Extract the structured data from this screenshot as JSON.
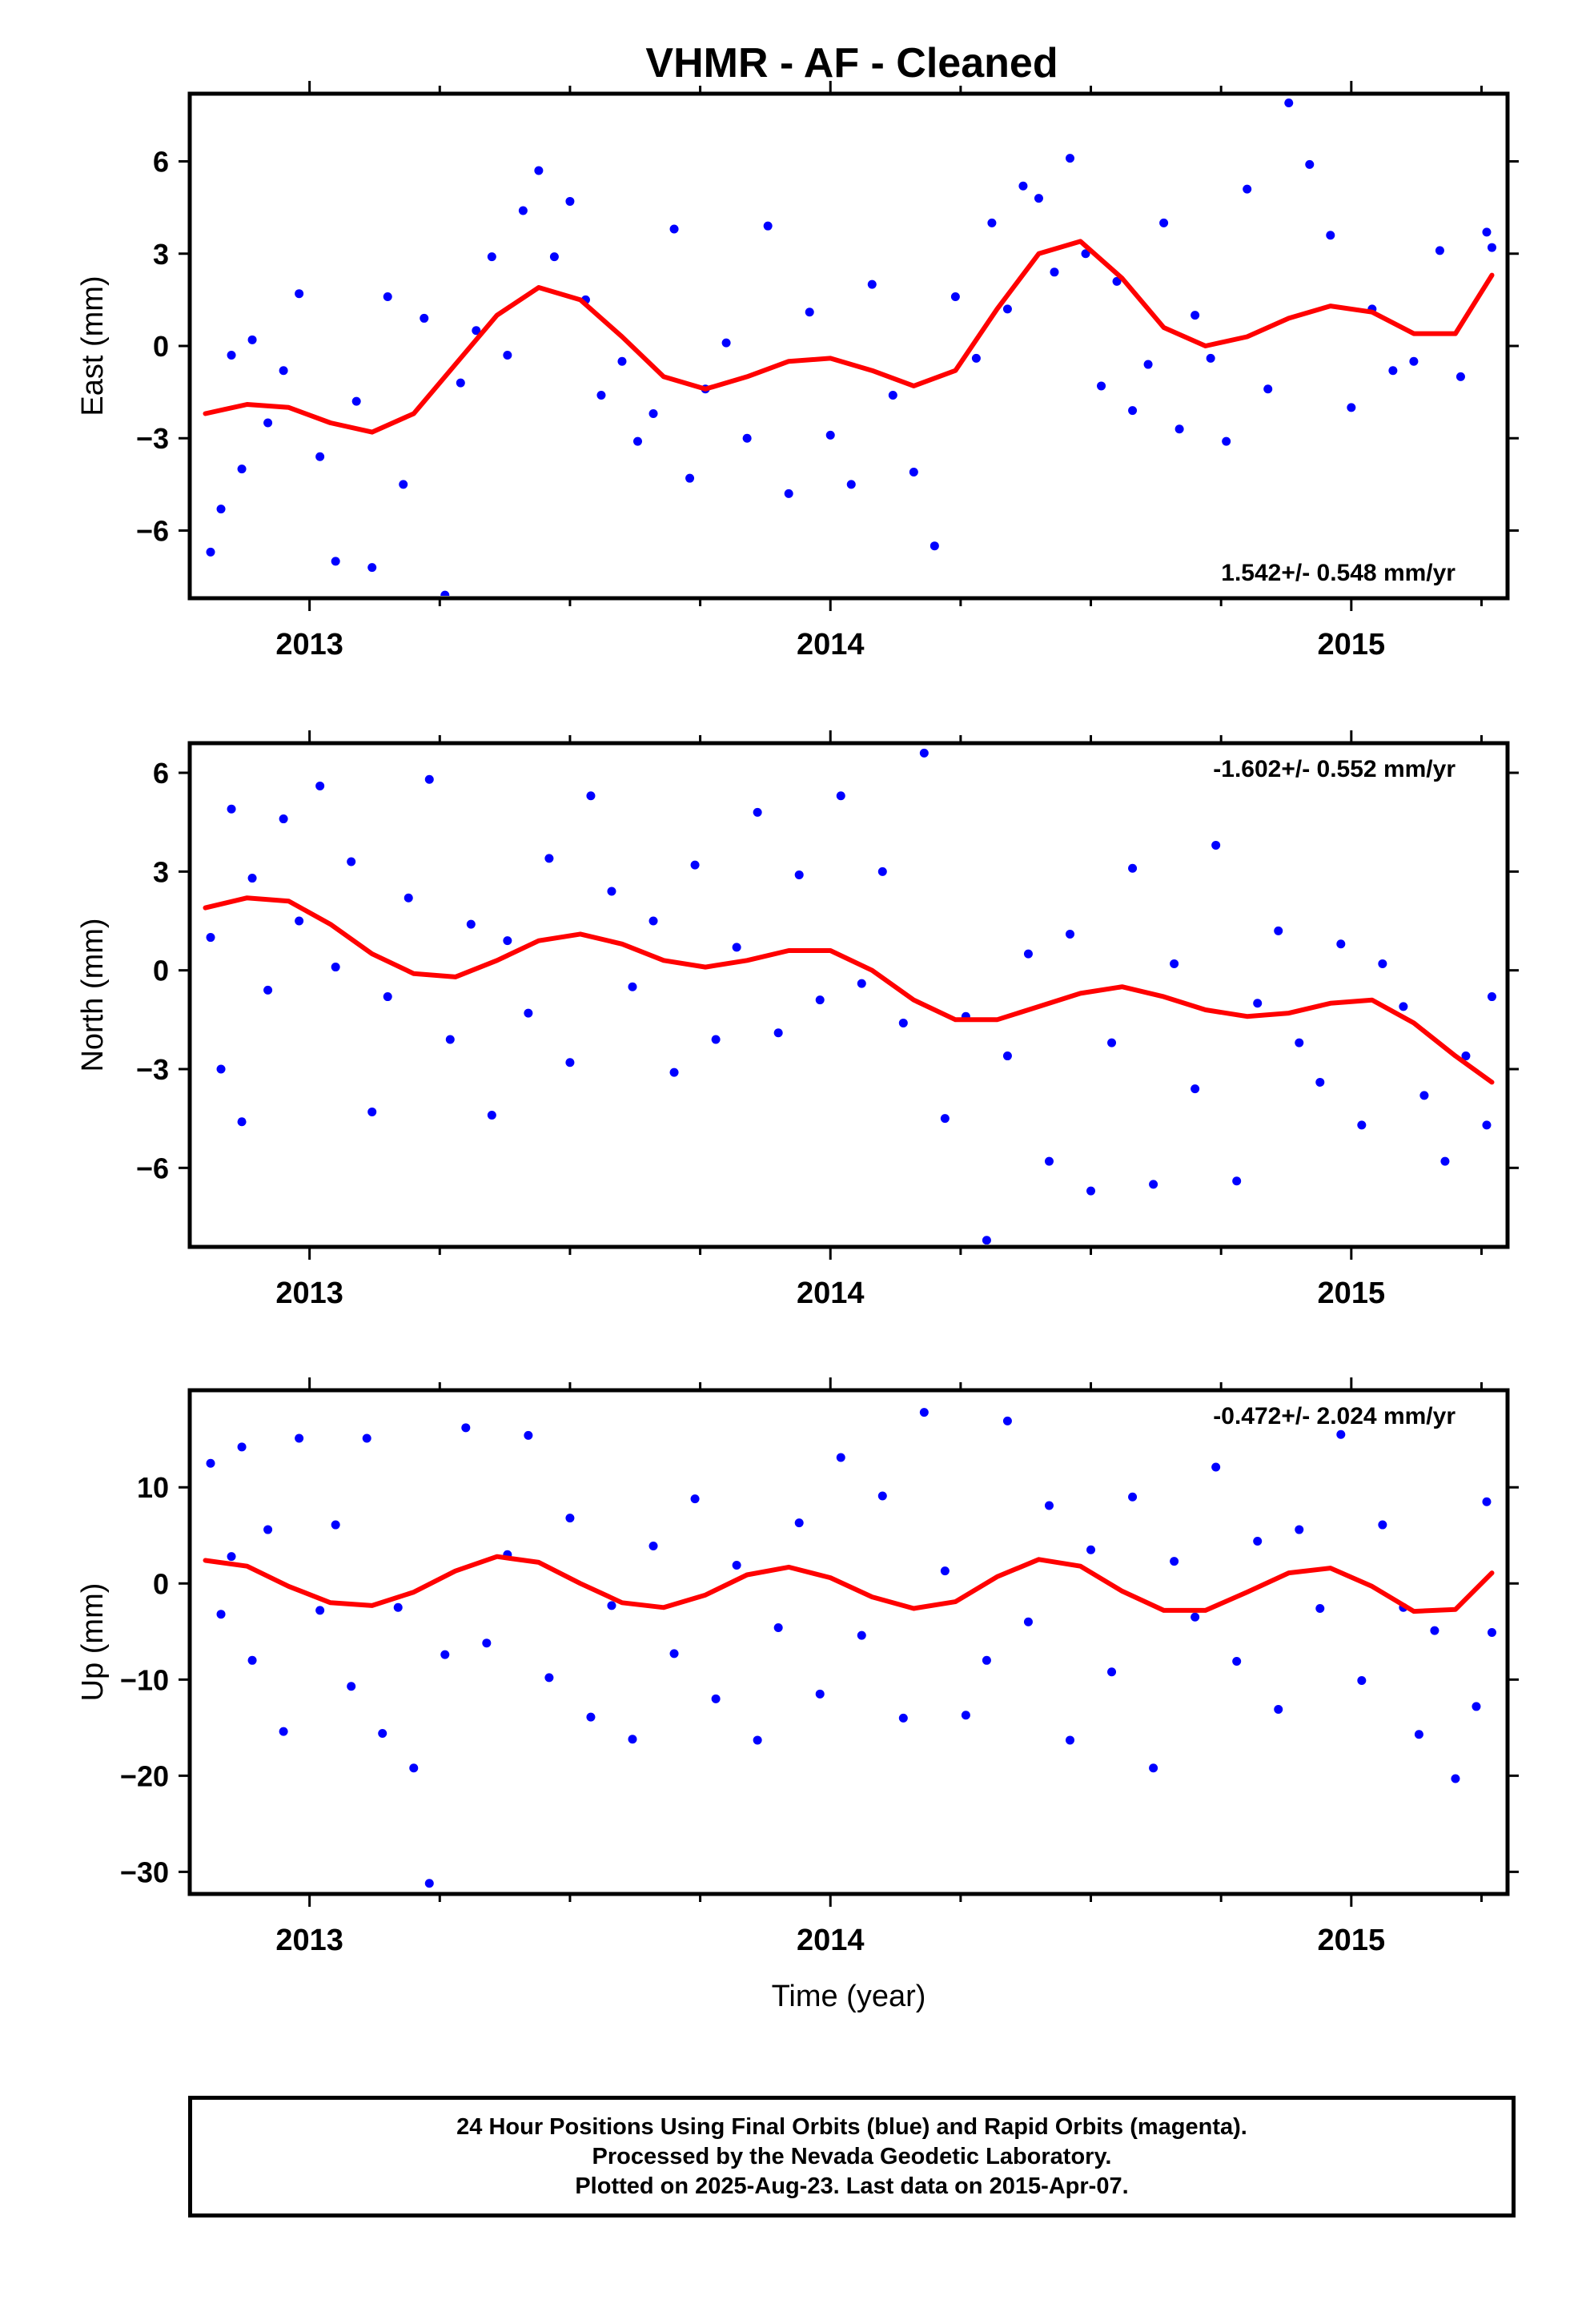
{
  "title": "VHMR  - AF - Cleaned",
  "colors": {
    "final_orbits": "#0000ff",
    "model_fit": "#ff0000",
    "axes": "#000000"
  },
  "chart_data": [
    {
      "type": "scatter",
      "panel": "east",
      "ylabel": "East (mm)",
      "xlim": [
        2012.77,
        2015.3
      ],
      "ylim": [
        -8.2,
        8.2
      ],
      "yticks": [
        -6,
        -3,
        0,
        3,
        6
      ],
      "ytick_labels": [
        "−6",
        "−3",
        "0",
        "3",
        "6"
      ],
      "xticks": [
        2013,
        2014,
        2015
      ],
      "xtick_labels": [
        "2013",
        "2014",
        "2015"
      ],
      "rate_annotation": "1.542+/- 0.548 mm/yr",
      "rate_placement": "bottom-right",
      "series": [
        {
          "kind": "points",
          "style": "final_orbits",
          "x": [
            2012.81,
            2012.83,
            2012.85,
            2012.87,
            2012.89,
            2012.92,
            2012.95,
            2012.98,
            2013.02,
            2013.05,
            2013.09,
            2013.12,
            2013.15,
            2013.18,
            2013.22,
            2013.26,
            2013.29,
            2013.32,
            2013.35,
            2013.38,
            2013.41,
            2013.44,
            2013.47,
            2013.5,
            2013.53,
            2013.56,
            2013.6,
            2013.63,
            2013.66,
            2013.7,
            2013.73,
            2013.76,
            2013.8,
            2013.84,
            2013.88,
            2013.92,
            2013.96,
            2014.0,
            2014.04,
            2014.08,
            2014.12,
            2014.16,
            2014.2,
            2014.24,
            2014.28,
            2014.31,
            2014.34,
            2014.37,
            2014.4,
            2014.43,
            2014.46,
            2014.49,
            2014.52,
            2014.55,
            2014.58,
            2014.61,
            2014.64,
            2014.67,
            2014.7,
            2014.73,
            2014.76,
            2014.8,
            2014.84,
            2014.88,
            2014.92,
            2014.96,
            2015.0,
            2015.04,
            2015.08,
            2015.12,
            2015.17,
            2015.21,
            2015.26,
            2015.27
          ],
          "y": [
            -6.7,
            -5.3,
            -0.3,
            -4.0,
            0.2,
            -2.5,
            -0.8,
            1.7,
            -3.6,
            -7.0,
            -1.8,
            -7.2,
            1.6,
            -4.5,
            0.9,
            -8.1,
            -1.2,
            0.5,
            2.9,
            -0.3,
            4.4,
            5.7,
            2.9,
            4.7,
            1.5,
            -1.6,
            -0.5,
            -3.1,
            -2.2,
            3.8,
            -4.3,
            -1.4,
            0.1,
            -3.0,
            3.9,
            -4.8,
            1.1,
            -2.9,
            -4.5,
            2.0,
            -1.6,
            -4.1,
            -6.5,
            1.6,
            -0.4,
            4.0,
            1.2,
            5.2,
            4.8,
            2.4,
            6.1,
            3.0,
            -1.3,
            2.1,
            -2.1,
            -0.6,
            4.0,
            -2.7,
            1.0,
            -0.4,
            -3.1,
            5.1,
            -1.4,
            7.9,
            5.9,
            3.6,
            -2.0,
            1.2,
            -0.8,
            -0.5,
            3.1,
            -1.0,
            3.7,
            3.2
          ]
        },
        {
          "kind": "line",
          "style": "model_fit",
          "x": [
            2012.8,
            2012.88,
            2012.96,
            2013.04,
            2013.12,
            2013.2,
            2013.28,
            2013.36,
            2013.44,
            2013.52,
            2013.6,
            2013.68,
            2013.76,
            2013.84,
            2013.92,
            2014.0,
            2014.08,
            2014.16,
            2014.24,
            2014.32,
            2014.4,
            2014.48,
            2014.56,
            2014.64,
            2014.72,
            2014.8,
            2014.88,
            2014.96,
            2015.04,
            2015.12,
            2015.2,
            2015.27
          ],
          "y": [
            -2.2,
            -1.9,
            -2.0,
            -2.5,
            -2.8,
            -2.2,
            -0.6,
            1.0,
            1.9,
            1.5,
            0.3,
            -1.0,
            -1.4,
            -1.0,
            -0.5,
            -0.4,
            -0.8,
            -1.3,
            -0.8,
            1.2,
            3.0,
            3.4,
            2.2,
            0.6,
            0.0,
            0.3,
            0.9,
            1.3,
            1.1,
            0.4,
            0.4,
            2.3
          ]
        }
      ]
    },
    {
      "type": "scatter",
      "panel": "north",
      "ylabel": "North (mm)",
      "xlim": [
        2012.77,
        2015.3
      ],
      "ylim": [
        -8.4,
        6.9
      ],
      "yticks": [
        -6,
        -3,
        0,
        3,
        6
      ],
      "ytick_labels": [
        "−6",
        "−3",
        "0",
        "3",
        "6"
      ],
      "xticks": [
        2013,
        2014,
        2015
      ],
      "xtick_labels": [
        "2013",
        "2014",
        "2015"
      ],
      "rate_annotation": "-1.602+/- 0.552 mm/yr",
      "rate_placement": "top-right",
      "series": [
        {
          "kind": "points",
          "style": "final_orbits",
          "x": [
            2012.81,
            2012.83,
            2012.85,
            2012.87,
            2012.89,
            2012.92,
            2012.95,
            2012.98,
            2013.02,
            2013.05,
            2013.08,
            2013.12,
            2013.15,
            2013.19,
            2013.23,
            2013.27,
            2013.31,
            2013.35,
            2013.38,
            2013.42,
            2013.46,
            2013.5,
            2013.54,
            2013.58,
            2013.62,
            2013.66,
            2013.7,
            2013.74,
            2013.78,
            2013.82,
            2013.86,
            2013.9,
            2013.94,
            2013.98,
            2014.02,
            2014.06,
            2014.1,
            2014.14,
            2014.18,
            2014.22,
            2014.26,
            2014.3,
            2014.34,
            2014.38,
            2014.42,
            2014.46,
            2014.5,
            2014.54,
            2014.58,
            2014.62,
            2014.66,
            2014.7,
            2014.74,
            2014.78,
            2014.82,
            2014.86,
            2014.9,
            2014.94,
            2014.98,
            2015.02,
            2015.06,
            2015.1,
            2015.14,
            2015.18,
            2015.22,
            2015.26,
            2015.27
          ],
          "y": [
            1.0,
            -3.0,
            4.9,
            -4.6,
            2.8,
            -0.6,
            4.6,
            1.5,
            5.6,
            0.1,
            3.3,
            -4.3,
            -0.8,
            2.2,
            5.8,
            -2.1,
            1.4,
            -4.4,
            0.9,
            -1.3,
            3.4,
            -2.8,
            5.3,
            2.4,
            -0.5,
            1.5,
            -3.1,
            3.2,
            -2.1,
            0.7,
            4.8,
            -1.9,
            2.9,
            -0.9,
            5.3,
            -0.4,
            3.0,
            -1.6,
            6.6,
            -4.5,
            -1.4,
            -8.2,
            -2.6,
            0.5,
            -5.8,
            1.1,
            -6.7,
            -2.2,
            3.1,
            -6.5,
            0.2,
            -3.6,
            3.8,
            -6.4,
            -1.0,
            1.2,
            -2.2,
            -3.4,
            0.8,
            -4.7,
            0.2,
            -1.1,
            -3.8,
            -5.8,
            -2.6,
            -4.7,
            -0.8
          ]
        },
        {
          "kind": "line",
          "style": "model_fit",
          "x": [
            2012.8,
            2012.88,
            2012.96,
            2013.04,
            2013.12,
            2013.2,
            2013.28,
            2013.36,
            2013.44,
            2013.52,
            2013.6,
            2013.68,
            2013.76,
            2013.84,
            2013.92,
            2014.0,
            2014.08,
            2014.16,
            2014.24,
            2014.32,
            2014.4,
            2014.48,
            2014.56,
            2014.64,
            2014.72,
            2014.8,
            2014.88,
            2014.96,
            2015.04,
            2015.12,
            2015.2,
            2015.27
          ],
          "y": [
            1.9,
            2.2,
            2.1,
            1.4,
            0.5,
            -0.1,
            -0.2,
            0.3,
            0.9,
            1.1,
            0.8,
            0.3,
            0.1,
            0.3,
            0.6,
            0.6,
            0.0,
            -0.9,
            -1.5,
            -1.5,
            -1.1,
            -0.7,
            -0.5,
            -0.8,
            -1.2,
            -1.4,
            -1.3,
            -1.0,
            -0.9,
            -1.6,
            -2.6,
            -3.4
          ]
        }
      ]
    },
    {
      "type": "scatter",
      "panel": "up",
      "ylabel": "Up (mm)",
      "xlabel": "Time (year)",
      "xlim": [
        2012.77,
        2015.3
      ],
      "ylim": [
        -32.3,
        20.1
      ],
      "yticks": [
        -30,
        -20,
        -10,
        0,
        10
      ],
      "ytick_labels": [
        "−30",
        "−20",
        "−10",
        "0",
        "10"
      ],
      "xticks": [
        2013,
        2014,
        2015
      ],
      "xtick_labels": [
        "2013",
        "2014",
        "2015"
      ],
      "rate_annotation": "-0.472+/- 2.024 mm/yr",
      "rate_placement": "top-right",
      "series": [
        {
          "kind": "points",
          "style": "final_orbits",
          "x": [
            2012.81,
            2012.83,
            2012.85,
            2012.87,
            2012.89,
            2012.92,
            2012.95,
            2012.98,
            2013.02,
            2013.05,
            2013.08,
            2013.11,
            2013.14,
            2013.17,
            2013.2,
            2013.23,
            2013.26,
            2013.3,
            2013.34,
            2013.38,
            2013.42,
            2013.46,
            2013.5,
            2013.54,
            2013.58,
            2013.62,
            2013.66,
            2013.7,
            2013.74,
            2013.78,
            2013.82,
            2013.86,
            2013.9,
            2013.94,
            2013.98,
            2014.02,
            2014.06,
            2014.1,
            2014.14,
            2014.18,
            2014.22,
            2014.26,
            2014.3,
            2014.34,
            2014.38,
            2014.42,
            2014.46,
            2014.5,
            2014.54,
            2014.58,
            2014.62,
            2014.66,
            2014.7,
            2014.74,
            2014.78,
            2014.82,
            2014.86,
            2014.9,
            2014.94,
            2014.98,
            2015.02,
            2015.06,
            2015.1,
            2015.13,
            2015.16,
            2015.2,
            2015.24,
            2015.26,
            2015.27
          ],
          "y": [
            12.5,
            -3.2,
            2.8,
            14.2,
            -8.0,
            5.6,
            -15.4,
            15.1,
            -2.8,
            6.1,
            -10.7,
            15.1,
            -15.6,
            -2.5,
            -19.2,
            -31.2,
            -7.4,
            16.2,
            -6.2,
            3.0,
            15.4,
            -9.8,
            6.8,
            -13.9,
            -2.3,
            -16.2,
            3.9,
            -7.3,
            8.8,
            -12.0,
            1.9,
            -16.3,
            -4.6,
            6.3,
            -11.5,
            13.1,
            -5.4,
            9.1,
            -14.0,
            17.8,
            1.3,
            -13.7,
            -8.0,
            16.9,
            -4.0,
            8.1,
            -16.3,
            3.5,
            -9.2,
            9.0,
            -19.2,
            2.3,
            -3.5,
            12.1,
            -8.1,
            4.4,
            -13.1,
            5.6,
            -2.6,
            15.5,
            -10.1,
            6.1,
            -2.5,
            -15.7,
            -4.9,
            -20.3,
            -12.8,
            8.5,
            -5.1
          ]
        },
        {
          "kind": "line",
          "style": "model_fit",
          "x": [
            2012.8,
            2012.88,
            2012.96,
            2013.04,
            2013.12,
            2013.2,
            2013.28,
            2013.36,
            2013.44,
            2013.52,
            2013.6,
            2013.68,
            2013.76,
            2013.84,
            2013.92,
            2014.0,
            2014.08,
            2014.16,
            2014.24,
            2014.32,
            2014.4,
            2014.48,
            2014.56,
            2014.64,
            2014.72,
            2014.8,
            2014.88,
            2014.96,
            2015.04,
            2015.12,
            2015.2,
            2015.27
          ],
          "y": [
            2.4,
            1.8,
            -0.3,
            -2.0,
            -2.3,
            -0.9,
            1.3,
            2.8,
            2.2,
            0.0,
            -2.0,
            -2.5,
            -1.2,
            0.9,
            1.7,
            0.6,
            -1.4,
            -2.6,
            -1.9,
            0.7,
            2.5,
            1.8,
            -0.8,
            -2.8,
            -2.8,
            -0.9,
            1.1,
            1.6,
            -0.3,
            -2.9,
            -2.7,
            1.1
          ]
        }
      ]
    }
  ],
  "footer": {
    "line1": "24 Hour Positions Using Final Orbits (blue) and Rapid Orbits (magenta).",
    "line2": "Processed by the Nevada Geodetic Laboratory.",
    "line3": "Plotted on 2025-Aug-23. Last data on 2015-Apr-07."
  }
}
